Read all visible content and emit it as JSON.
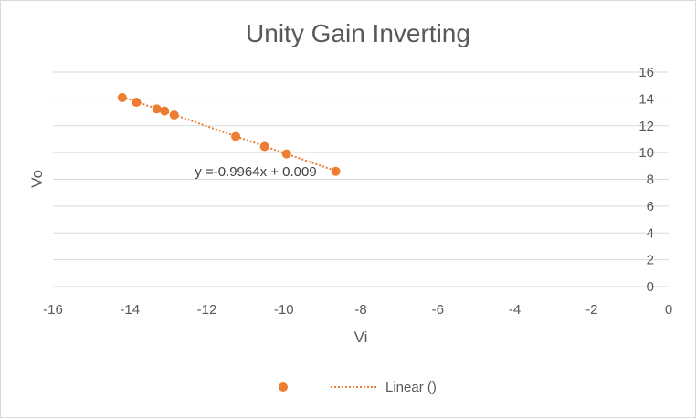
{
  "chart_data": {
    "type": "scatter",
    "title": "Unity Gain Inverting",
    "xlabel": "Vi",
    "ylabel": "Vo",
    "xlim": [
      -16,
      0
    ],
    "ylim": [
      0,
      16
    ],
    "x_ticks": [
      "-16",
      "-14",
      "-12",
      "-10",
      "-8",
      "-6",
      "-4",
      "-2",
      "0"
    ],
    "y_ticks": [
      "0",
      "2",
      "4",
      "6",
      "8",
      "10",
      "12",
      "14",
      "16"
    ],
    "grid": true,
    "y_axis_position": "right",
    "series": [
      {
        "x": [
          -14.2,
          -13.83,
          -13.3,
          -13.1,
          -12.85,
          -11.25,
          -10.5,
          -9.93,
          -8.65
        ],
        "y": [
          14.1,
          13.75,
          13.25,
          13.1,
          12.8,
          11.2,
          10.45,
          9.9,
          8.6
        ],
        "color": "#ED7D31"
      }
    ],
    "trendline": {
      "type": "linear",
      "slope": -0.9964,
      "intercept": 0.009,
      "x_range": [
        -14.2,
        -8.65
      ],
      "equation_label": "y =-0.9964x + 0.009",
      "color": "#ED7D31"
    },
    "legend": {
      "position": "bottom",
      "entries": [
        "",
        "Linear ()"
      ]
    }
  }
}
